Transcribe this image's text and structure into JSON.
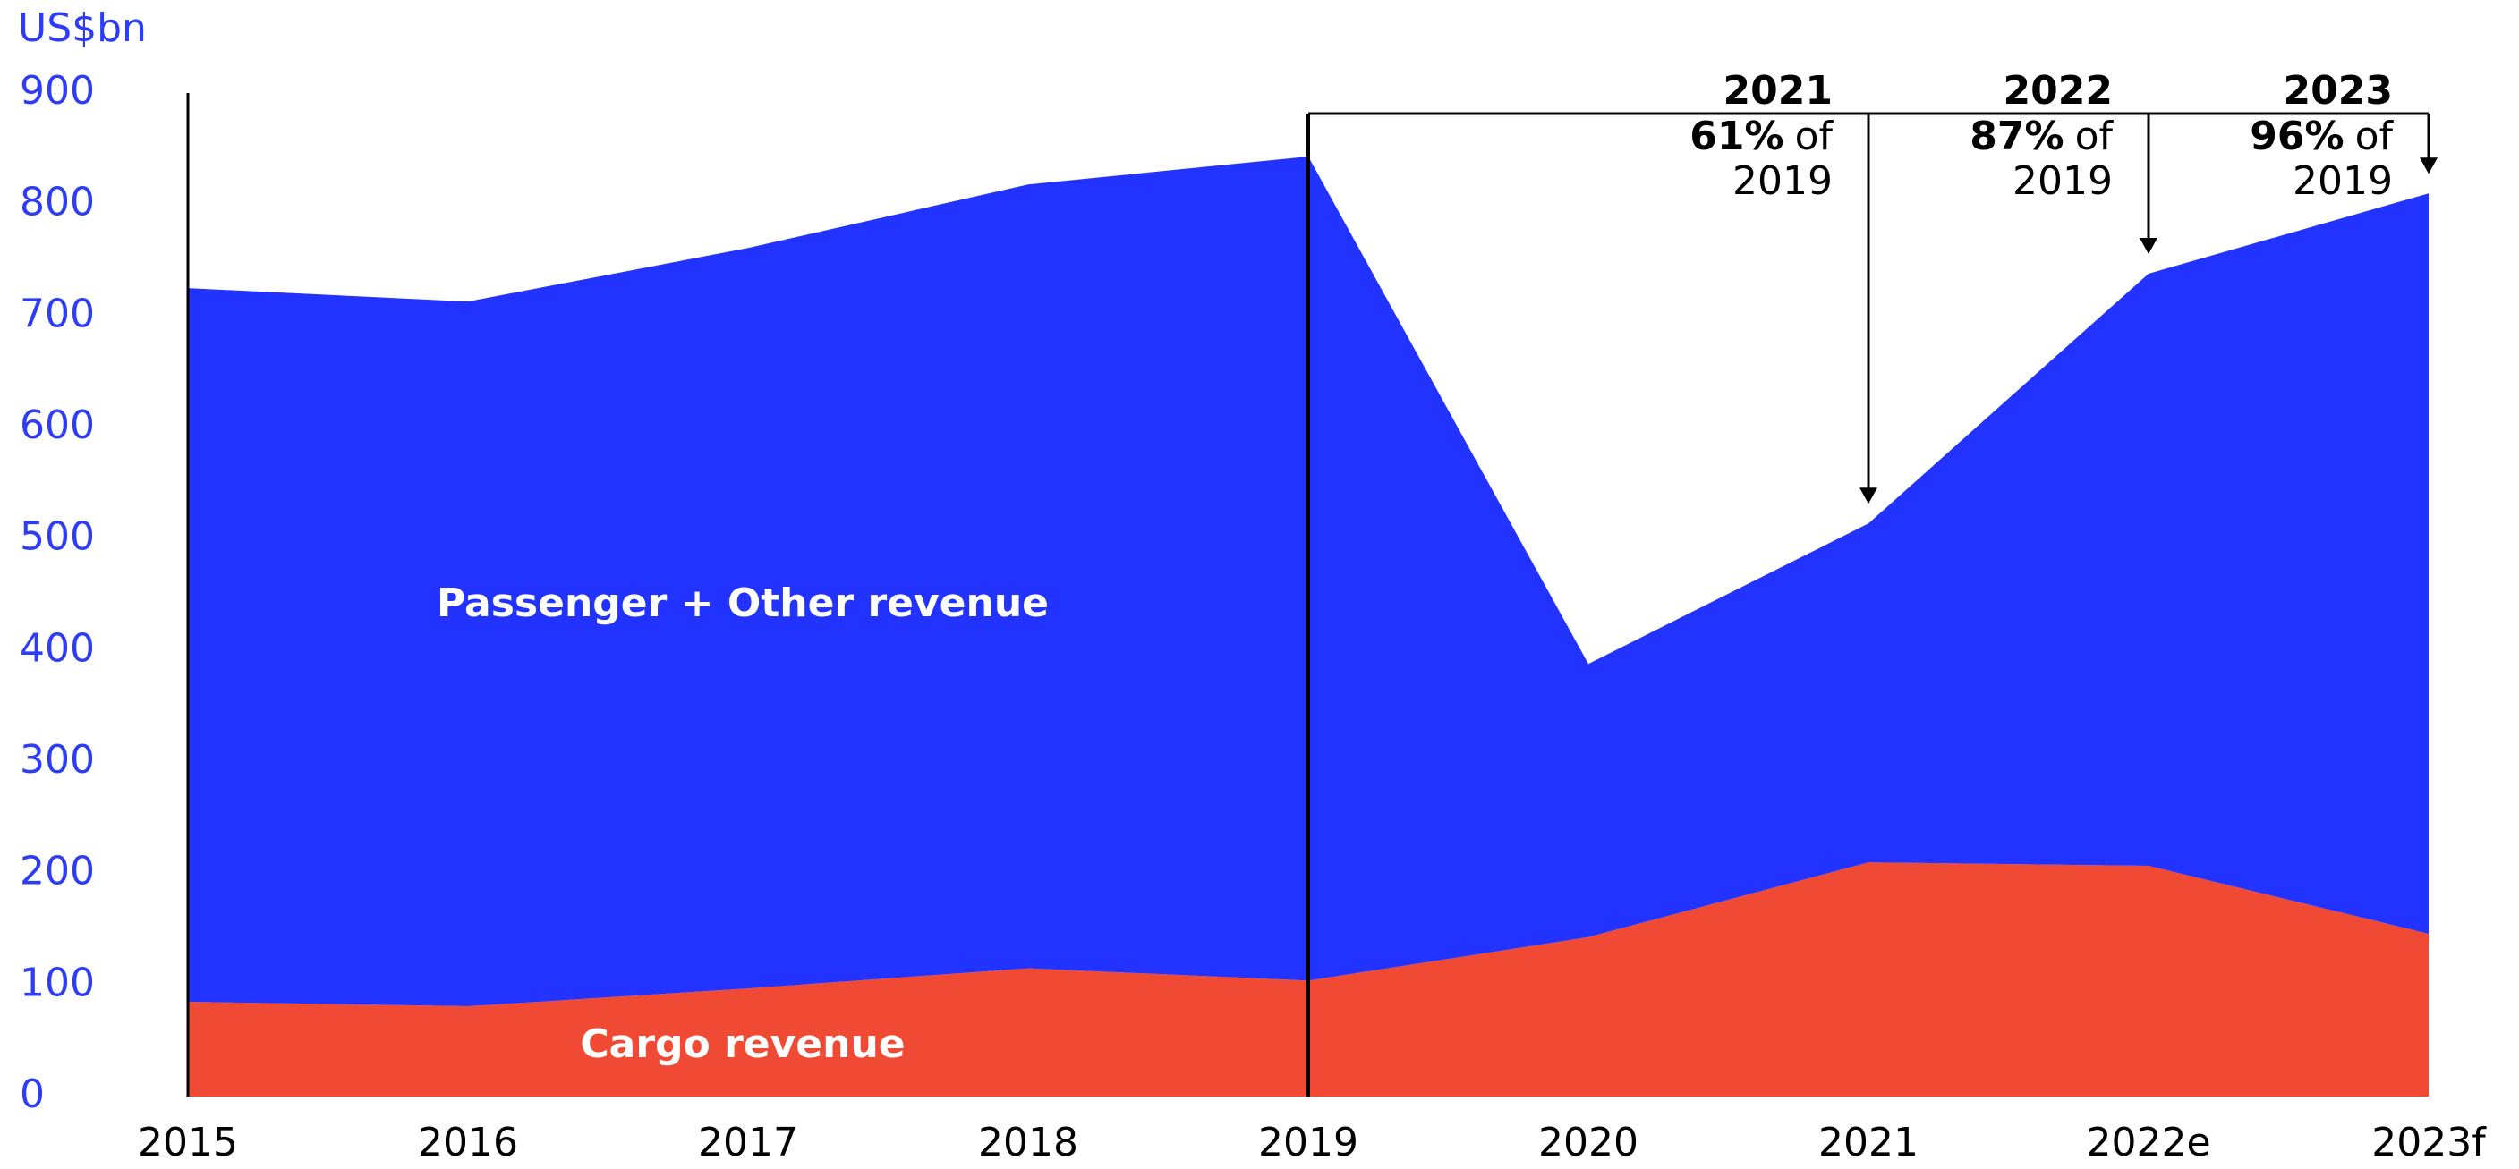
{
  "chart_data": {
    "type": "stacked_area",
    "y_label": "US$bn",
    "categories": [
      "2015",
      "2016",
      "2017",
      "2018",
      "2019",
      "2020",
      "2021",
      "2022e",
      "2023f"
    ],
    "series": [
      {
        "name": "Cargo revenue",
        "color": "#f04a35",
        "values": [
          85,
          81,
          97,
          115,
          104,
          143,
          210,
          207,
          146
        ]
      },
      {
        "name": "Passenger + Other revenue",
        "color": "#2233ff",
        "values": [
          640,
          632,
          664,
          703,
          739,
          245,
          304,
          531,
          664
        ]
      }
    ],
    "ylim": [
      0,
      900
    ],
    "yticks": [
      0,
      100,
      200,
      300,
      400,
      500,
      600,
      700,
      800,
      900
    ],
    "annotations": [
      {
        "year": "2021",
        "pct": "61%",
        "of": "of",
        "base": "2019"
      },
      {
        "year": "2022",
        "pct": "87%",
        "of": "of",
        "base": "2019"
      },
      {
        "year": "2023",
        "pct": "96%",
        "of": "of",
        "base": "2019"
      }
    ]
  }
}
